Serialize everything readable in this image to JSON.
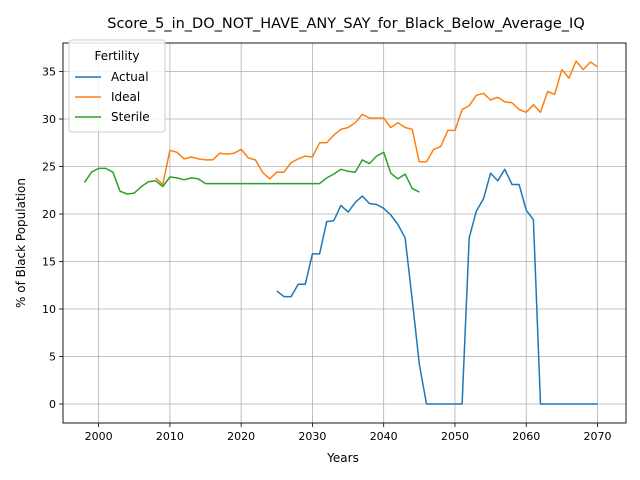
{
  "chart_data": {
    "type": "line",
    "title": "Score_5_in_DO_NOT_HAVE_ANY_SAY_for_Black_Below_Average_IQ",
    "xlabel": "Years",
    "ylabel": "% of Black Population",
    "xlim": [
      1995,
      2074
    ],
    "ylim": [
      -2,
      38
    ],
    "xticks": [
      2000,
      2010,
      2020,
      2030,
      2040,
      2050,
      2060,
      2070
    ],
    "yticks": [
      0,
      5,
      10,
      15,
      20,
      25,
      30,
      35
    ],
    "grid": true,
    "legend": {
      "title": "Fertility",
      "placement": "upper-left"
    },
    "series": [
      {
        "name": "Actual",
        "color": "#1f77b4",
        "x": [
          2025,
          2026,
          2027,
          2028,
          2029,
          2030,
          2031,
          2032,
          2033,
          2034,
          2035,
          2036,
          2037,
          2038,
          2039,
          2040,
          2041,
          2042,
          2043,
          2044,
          2045,
          2046,
          2047,
          2048,
          2049,
          2050,
          2051,
          2052,
          2053,
          2054,
          2055,
          2056,
          2057,
          2058,
          2059,
          2060,
          2061,
          2062,
          2063,
          2064,
          2065,
          2066,
          2067,
          2068,
          2069,
          2070
        ],
        "y": [
          11.9,
          11.3,
          11.3,
          12.6,
          12.6,
          15.8,
          15.8,
          19.2,
          19.3,
          20.9,
          20.2,
          21.2,
          21.9,
          21.1,
          21.0,
          20.6,
          19.9,
          18.9,
          17.5,
          11.0,
          4.2,
          0,
          0,
          0,
          0,
          0,
          0,
          17.5,
          20.3,
          21.6,
          24.3,
          23.5,
          24.7,
          23.1,
          23.1,
          20.4,
          19.4,
          0,
          0,
          0,
          0,
          0,
          0,
          0,
          0,
          0
        ]
      },
      {
        "name": "Ideal",
        "color": "#ff7f0e",
        "x": [
          2008,
          2009,
          2010,
          2011,
          2012,
          2013,
          2014,
          2015,
          2016,
          2017,
          2018,
          2019,
          2020,
          2021,
          2022,
          2023,
          2024,
          2025,
          2026,
          2027,
          2028,
          2029,
          2030,
          2031,
          2032,
          2033,
          2034,
          2035,
          2036,
          2037,
          2038,
          2039,
          2040,
          2041,
          2042,
          2043,
          2044,
          2045,
          2046,
          2047,
          2048,
          2049,
          2050,
          2051,
          2052,
          2053,
          2054,
          2055,
          2056,
          2057,
          2058,
          2059,
          2060,
          2061,
          2062,
          2063,
          2064,
          2065,
          2066,
          2067,
          2068,
          2069,
          2070
        ],
        "y": [
          23.8,
          23.1,
          26.7,
          26.5,
          25.8,
          26.0,
          25.8,
          25.7,
          25.7,
          26.4,
          26.3,
          26.4,
          26.8,
          25.9,
          25.7,
          24.4,
          23.7,
          24.4,
          24.4,
          25.4,
          25.8,
          26.1,
          26.0,
          27.5,
          27.5,
          28.3,
          28.9,
          29.1,
          29.6,
          30.5,
          30.1,
          30.1,
          30.1,
          29.1,
          29.6,
          29.1,
          28.9,
          25.5,
          25.5,
          26.8,
          27.1,
          28.8,
          28.8,
          31.0,
          31.4,
          32.5,
          32.7,
          32.0,
          32.3,
          31.8,
          31.7,
          31.0,
          30.7,
          31.5,
          30.7,
          32.9,
          32.6,
          35.2,
          34.3,
          36.1,
          35.2,
          36.0,
          35.5
        ]
      },
      {
        "name": "Sterile",
        "color": "#2ca02c",
        "x": [
          1998,
          1999,
          2000,
          2001,
          2002,
          2003,
          2004,
          2005,
          2006,
          2007,
          2008,
          2009,
          2010,
          2011,
          2012,
          2013,
          2014,
          2015,
          2016,
          2017,
          2018,
          2019,
          2020,
          2021,
          2022,
          2023,
          2024,
          2025,
          2026,
          2027,
          2028,
          2029,
          2030,
          2031,
          2032,
          2033,
          2034,
          2035,
          2036,
          2037,
          2038,
          2039,
          2040,
          2041,
          2042,
          2043,
          2044,
          2045
        ],
        "y": [
          23.3,
          24.4,
          24.8,
          24.8,
          24.4,
          22.4,
          22.1,
          22.2,
          22.9,
          23.4,
          23.5,
          22.9,
          23.9,
          23.8,
          23.6,
          23.8,
          23.7,
          23.2,
          23.2,
          23.2,
          23.2,
          23.2,
          23.2,
          23.2,
          23.2,
          23.2,
          23.2,
          23.2,
          23.2,
          23.2,
          23.2,
          23.2,
          23.2,
          23.2,
          23.8,
          24.2,
          24.7,
          24.5,
          24.4,
          25.7,
          25.3,
          26.1,
          26.5,
          24.3,
          23.7,
          24.2,
          22.7,
          22.3
        ]
      }
    ]
  }
}
